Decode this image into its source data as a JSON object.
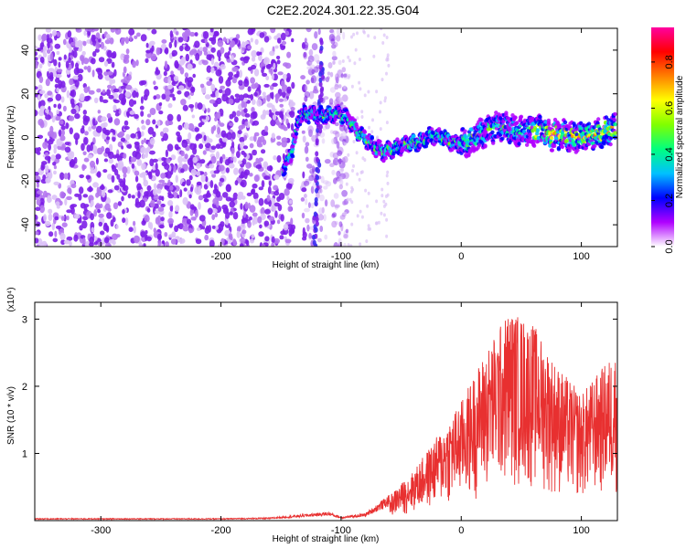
{
  "title": "C2E2.2024.301.22.35.G04",
  "chart_data": [
    {
      "type": "heatmap",
      "xlabel": "Height of straight line (km)",
      "ylabel": "Frequency (Hz)",
      "xlim": [
        -355,
        130
      ],
      "ylim": [
        -50,
        50
      ],
      "xticks": [
        -300,
        -200,
        -100,
        0,
        100
      ],
      "yticks": [
        -40,
        -20,
        0,
        20,
        40
      ],
      "colorbar": {
        "label": "Normalized spectral amplitude",
        "range": [
          0,
          0.95
        ],
        "ticks": [
          "0.0",
          "0.2",
          "0.4",
          "0.6",
          "0.8"
        ],
        "colormap": [
          "#ffffff",
          "#b000ff",
          "#0000ff",
          "#00c0ff",
          "#00ff80",
          "#80ff00",
          "#ffff00",
          "#ff8000",
          "#ff0000",
          "#ff00a0"
        ]
      },
      "noise_region_x": [
        -355,
        -95
      ],
      "trace": {
        "x": [
          -148,
          -140,
          -135,
          -125,
          -115,
          -105,
          -95,
          -85,
          -75,
          -65,
          -55,
          -45,
          -35,
          -25,
          -15,
          -5,
          5,
          15,
          25,
          35,
          45,
          55,
          65,
          75,
          85,
          95,
          105,
          115,
          128
        ],
        "y": [
          -15,
          -5,
          10,
          11,
          10,
          11,
          9,
          2,
          -3,
          -7,
          -5,
          -3,
          -2,
          1,
          0,
          -3,
          -2,
          1,
          4,
          5,
          3,
          3,
          3,
          1,
          1,
          0,
          1,
          2,
          4
        ]
      }
    },
    {
      "type": "line",
      "xlabel": "Height of straight line (km)",
      "ylabel": "SNR (10 * v/v)",
      "y_multiplier": "(x10⁴)",
      "xlim": [
        -355,
        130
      ],
      "ylim": [
        0,
        3.25
      ],
      "xticks": [
        -300,
        -200,
        -100,
        0,
        100
      ],
      "yticks": [
        1,
        2,
        3
      ],
      "color": "#e83030",
      "envelope": {
        "x": [
          -355,
          -300,
          -200,
          -160,
          -110,
          -100,
          -80,
          -60,
          -40,
          -20,
          0,
          20,
          40,
          60,
          80,
          100,
          128
        ],
        "y": [
          0.03,
          0.03,
          0.03,
          0.04,
          0.12,
          0.05,
          0.1,
          0.35,
          0.7,
          1.2,
          1.7,
          2.4,
          3.0,
          2.8,
          2.2,
          1.8,
          2.4
        ]
      }
    }
  ]
}
